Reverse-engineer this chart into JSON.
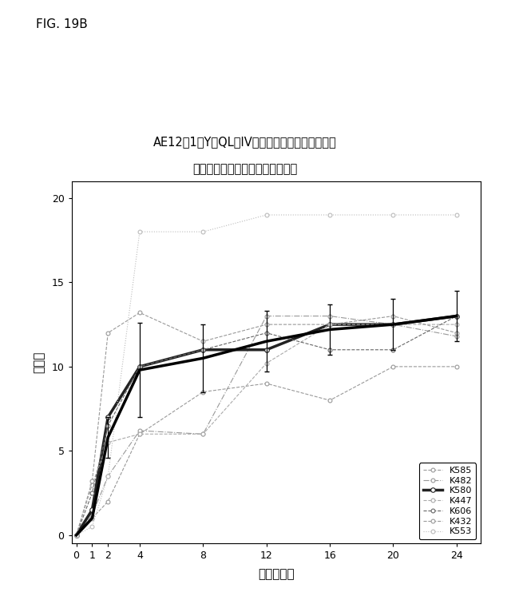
{
  "title_line1": "AE12－1－Y－QL　IV処置群について観察された",
  "title_line2": "個別の曲線による推定中央値曲線",
  "fig_label": "FIG. 19B",
  "xlabel": "時間（週）",
  "ylabel": "スコア",
  "xlim": [
    -0.3,
    25.5
  ],
  "ylim": [
    -0.5,
    21
  ],
  "xticks": [
    0,
    1,
    2,
    4,
    8,
    12,
    16,
    20,
    24
  ],
  "yticks": [
    0,
    5,
    10,
    15,
    20
  ],
  "time_points": [
    0,
    1,
    2,
    4,
    8,
    12,
    16,
    20,
    24
  ],
  "series": {
    "K585": {
      "values": [
        0,
        1.0,
        2.0,
        6.0,
        8.5,
        9.0,
        8.0,
        10.0,
        10.0
      ],
      "color": "#999999",
      "lw": 0.8,
      "marker": "o",
      "ms": 3.5,
      "linestyle": "--"
    },
    "K482": {
      "values": [
        0,
        1.2,
        3.5,
        6.2,
        6.0,
        13.0,
        13.0,
        12.5,
        11.8
      ],
      "color": "#999999",
      "lw": 0.8,
      "marker": "o",
      "ms": 3.5,
      "linestyle": "-."
    },
    "K580": {
      "values": [
        0,
        1.5,
        7.0,
        10.0,
        11.0,
        11.0,
        12.5,
        12.5,
        13.0
      ],
      "color": "#222222",
      "lw": 2.5,
      "marker": "o",
      "ms": 4,
      "linestyle": "-"
    },
    "K447": {
      "values": [
        0,
        3.0,
        5.5,
        6.0,
        6.0,
        10.2,
        12.5,
        12.5,
        12.5
      ],
      "color": "#aaaaaa",
      "lw": 0.8,
      "marker": "o",
      "ms": 3.5,
      "linestyle": "--"
    },
    "K606": {
      "values": [
        0,
        2.5,
        6.5,
        10.0,
        11.0,
        12.0,
        11.0,
        11.0,
        13.0
      ],
      "color": "#666666",
      "lw": 0.8,
      "marker": "o",
      "ms": 3.5,
      "linestyle": "--"
    },
    "K432": {
      "values": [
        0,
        3.2,
        12.0,
        13.2,
        11.5,
        12.5,
        12.5,
        13.0,
        12.0
      ],
      "color": "#999999",
      "lw": 0.8,
      "marker": "o",
      "ms": 3.5,
      "linestyle": "--"
    },
    "K553": {
      "values": [
        0,
        0.5,
        3.5,
        18.0,
        18.0,
        19.0,
        19.0,
        19.0,
        19.0
      ],
      "color": "#bbbbbb",
      "lw": 0.8,
      "marker": "o",
      "ms": 3.5,
      "linestyle": ":"
    }
  },
  "median_curve": {
    "values": [
      0,
      1.0,
      5.8,
      9.8,
      10.5,
      11.5,
      12.2,
      12.5,
      13.0
    ],
    "color": "#000000",
    "lw": 2.5
  },
  "error_bars": {
    "times": [
      2,
      4,
      8,
      12,
      16,
      20,
      24
    ],
    "values": [
      5.8,
      9.8,
      10.5,
      11.5,
      12.2,
      12.5,
      13.0
    ],
    "errors": [
      1.2,
      2.8,
      2.0,
      1.8,
      1.5,
      1.5,
      1.5
    ]
  }
}
